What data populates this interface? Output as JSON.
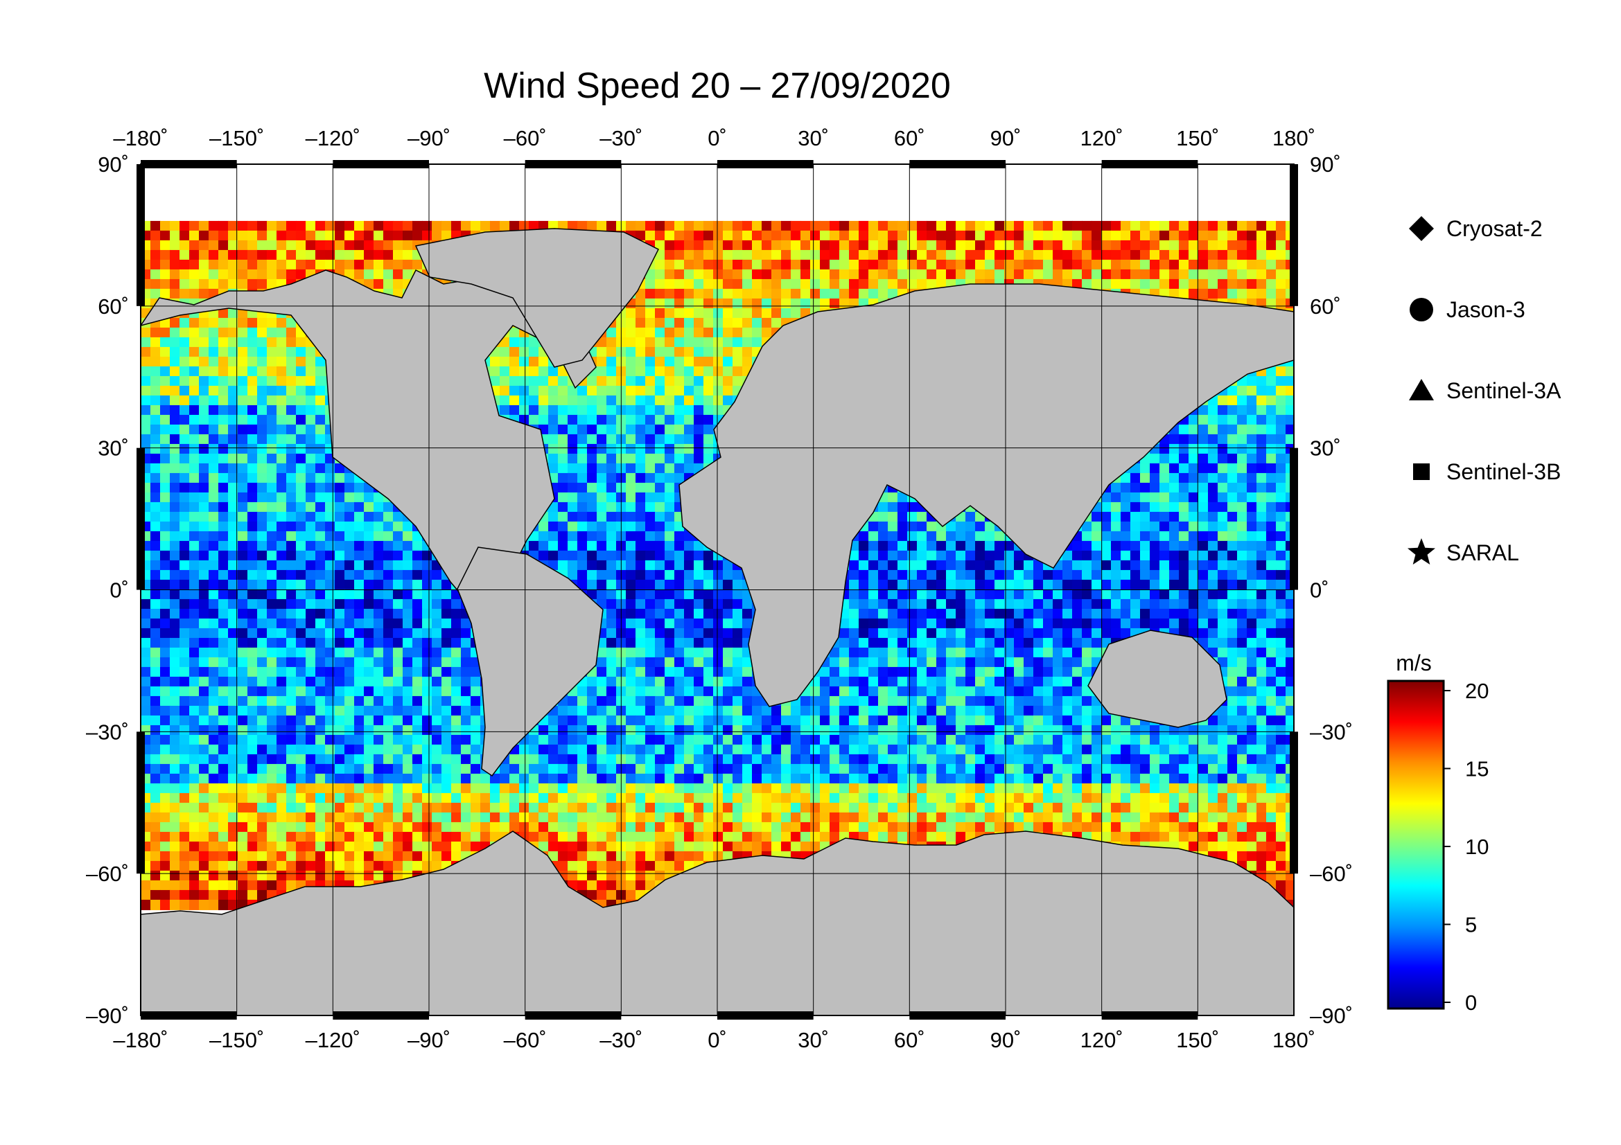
{
  "title": "Wind Speed 20 – 27/09/2020",
  "map": {
    "lon_range": [
      -180,
      180
    ],
    "lat_range": [
      -90,
      90
    ],
    "lon_ticks": [
      {
        "value": -180,
        "label": "–180˚"
      },
      {
        "value": -150,
        "label": "–150˚"
      },
      {
        "value": -120,
        "label": "–120˚"
      },
      {
        "value": -90,
        "label": "–90˚"
      },
      {
        "value": -60,
        "label": "–60˚"
      },
      {
        "value": -30,
        "label": "–30˚"
      },
      {
        "value": 0,
        "label": "0˚"
      },
      {
        "value": 30,
        "label": "30˚"
      },
      {
        "value": 60,
        "label": "60˚"
      },
      {
        "value": 90,
        "label": "90˚"
      },
      {
        "value": 120,
        "label": "120˚"
      },
      {
        "value": 150,
        "label": "150˚"
      },
      {
        "value": 180,
        "label": "180˚"
      }
    ],
    "lat_ticks": [
      {
        "value": 90,
        "label": "90˚"
      },
      {
        "value": 60,
        "label": "60˚"
      },
      {
        "value": 30,
        "label": "30˚"
      },
      {
        "value": 0,
        "label": "0˚"
      },
      {
        "value": -30,
        "label": "–30˚"
      },
      {
        "value": -60,
        "label": "–60˚"
      },
      {
        "value": -90,
        "label": "–90˚"
      }
    ],
    "land_color": "#bebebe",
    "ocean_nodata_color": "#ffffff"
  },
  "legend": {
    "satellites": [
      {
        "name": "Cryosat-2",
        "marker": "diamond"
      },
      {
        "name": "Jason-3",
        "marker": "circle"
      },
      {
        "name": "Sentinel-3A",
        "marker": "triangle"
      },
      {
        "name": "Sentinel-3B",
        "marker": "square"
      },
      {
        "name": "SARAL",
        "marker": "star"
      }
    ]
  },
  "colorbar": {
    "unit": "m/s",
    "range": [
      0,
      20
    ],
    "ticks": [
      {
        "value": 20,
        "label": "20"
      },
      {
        "value": 15,
        "label": "15"
      },
      {
        "value": 10,
        "label": "10"
      },
      {
        "value": 5,
        "label": "5"
      },
      {
        "value": 0,
        "label": "0"
      }
    ],
    "colors": [
      "#00008c",
      "#0000ff",
      "#0090ff",
      "#00ffff",
      "#80ff80",
      "#ffff00",
      "#ff9000",
      "#ff0000",
      "#800000"
    ]
  }
}
